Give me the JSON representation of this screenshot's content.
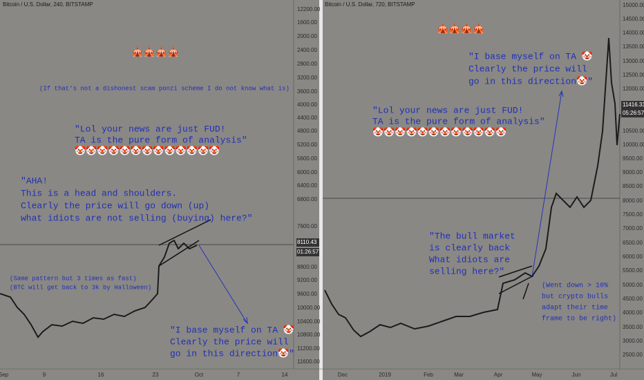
{
  "panels": [
    {
      "header": "Bitcoin / U.S. Dollar, 240, BITSTAMP",
      "price_labels": [
        "12200.00",
        "1600.00",
        "2000.00",
        "2400.00",
        "2800.00",
        "3200.00",
        "3600.00",
        "4000.00",
        "4400.00",
        "4800.00",
        "5200.00",
        "5600.00",
        "6000.00",
        "6400.00",
        "6800.00",
        "7600.00",
        "8800.00",
        "9200.00",
        "9600.00",
        "10000.00",
        "10400.00",
        "10800.00",
        "11200.00",
        "11600.00"
      ],
      "last_price": "8110.43",
      "countdown": "01:26:57",
      "time_labels": [
        "Sep",
        "9",
        "16",
        "23",
        "Oct",
        "7",
        "14"
      ],
      "annotations": [
        [
          "🎪🎪🎪🎪"
        ],
        [
          "(If that's not a dishonest scam ponzi scheme I do not know what is)"
        ],
        [
          "\"Lol your news are just FUD!",
          "TA is the pure form of analysis\"",
          "🤡🤡🤡🤡🤡🤡🤡🤡🤡🤡🤡🤡🤡"
        ],
        [
          "\"AHA!",
          "This is a head and shoulders.",
          "Clearly the price will go down (up)",
          "what idiots are not selling (buying) here?\""
        ],
        [
          "(Same pattern but 3 times as fast)",
          "(BTC will get back to 3k by Halloween)"
        ],
        [
          "\"I base myself on TA 🤡",
          "Clearly the price will",
          "go in this direction🤡\""
        ]
      ]
    },
    {
      "header": "Bitcoin / U.S. Dollar, 720, BITSTAMP",
      "price_labels": [
        "15000.00",
        "14500.00",
        "14000.00",
        "13500.00",
        "13000.00",
        "12500.00",
        "12000.00",
        "10500.00",
        "10000.00",
        "9500.00",
        "9000.00",
        "8500.00",
        "8000.00",
        "7500.00",
        "7000.00",
        "6500.00",
        "6000.00",
        "5500.00",
        "5000.00",
        "4500.00",
        "4000.00",
        "3500.00",
        "3000.00",
        "2500.00"
      ],
      "last_price": "11416.33",
      "countdown": "05:26:57",
      "time_labels": [
        "Dec",
        "2019",
        "Feb",
        "Mar",
        "Apr",
        "May",
        "Jun",
        "Jul"
      ],
      "annotations": [
        [
          "🎪🎪🎪🎪"
        ],
        [
          "\"I base myself on TA 🤡",
          "Clearly the price will",
          "go in this direction🤡\""
        ],
        [
          "\"Lol your news are just FUD!",
          "TA is the pure form of analysis\"",
          "🤡🤡🤡🤡🤡🤡🤡🤡🤡🤡🤡🤡"
        ],
        [
          "\"The bull market",
          "is clearly back",
          "What idiots are",
          "selling here?\""
        ],
        [
          "(Went down > 10%",
          "but crypto bulls",
          "adapt their time",
          "frame to be right)"
        ]
      ]
    }
  ]
}
